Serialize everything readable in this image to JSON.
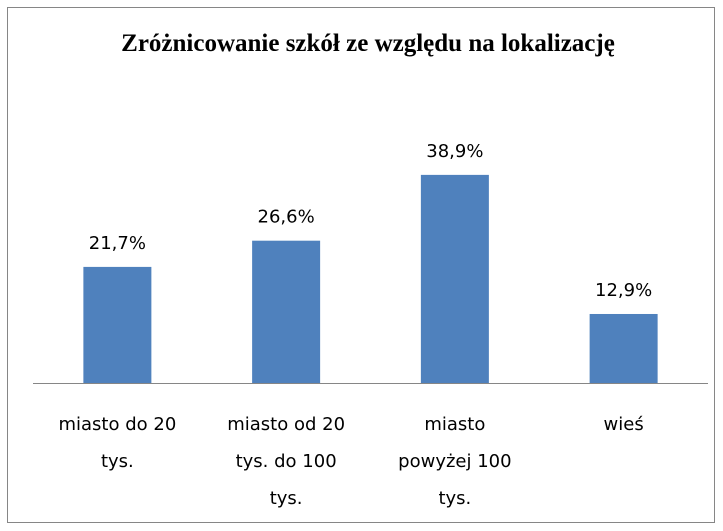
{
  "chart_data": {
    "type": "bar",
    "title": "Zróżnicowanie szkół ze względu na lokalizację",
    "categories": [
      "miasto do 20 tys.",
      "miasto od 20 tys. do 100 tys.",
      "miasto powyżej 100 tys.",
      "wieś"
    ],
    "values": [
      21.7,
      26.6,
      38.9,
      12.9
    ],
    "value_labels": [
      "21,7%",
      "26,6%",
      "38,9%",
      "12,9%"
    ],
    "color": "#4f81bd"
  }
}
